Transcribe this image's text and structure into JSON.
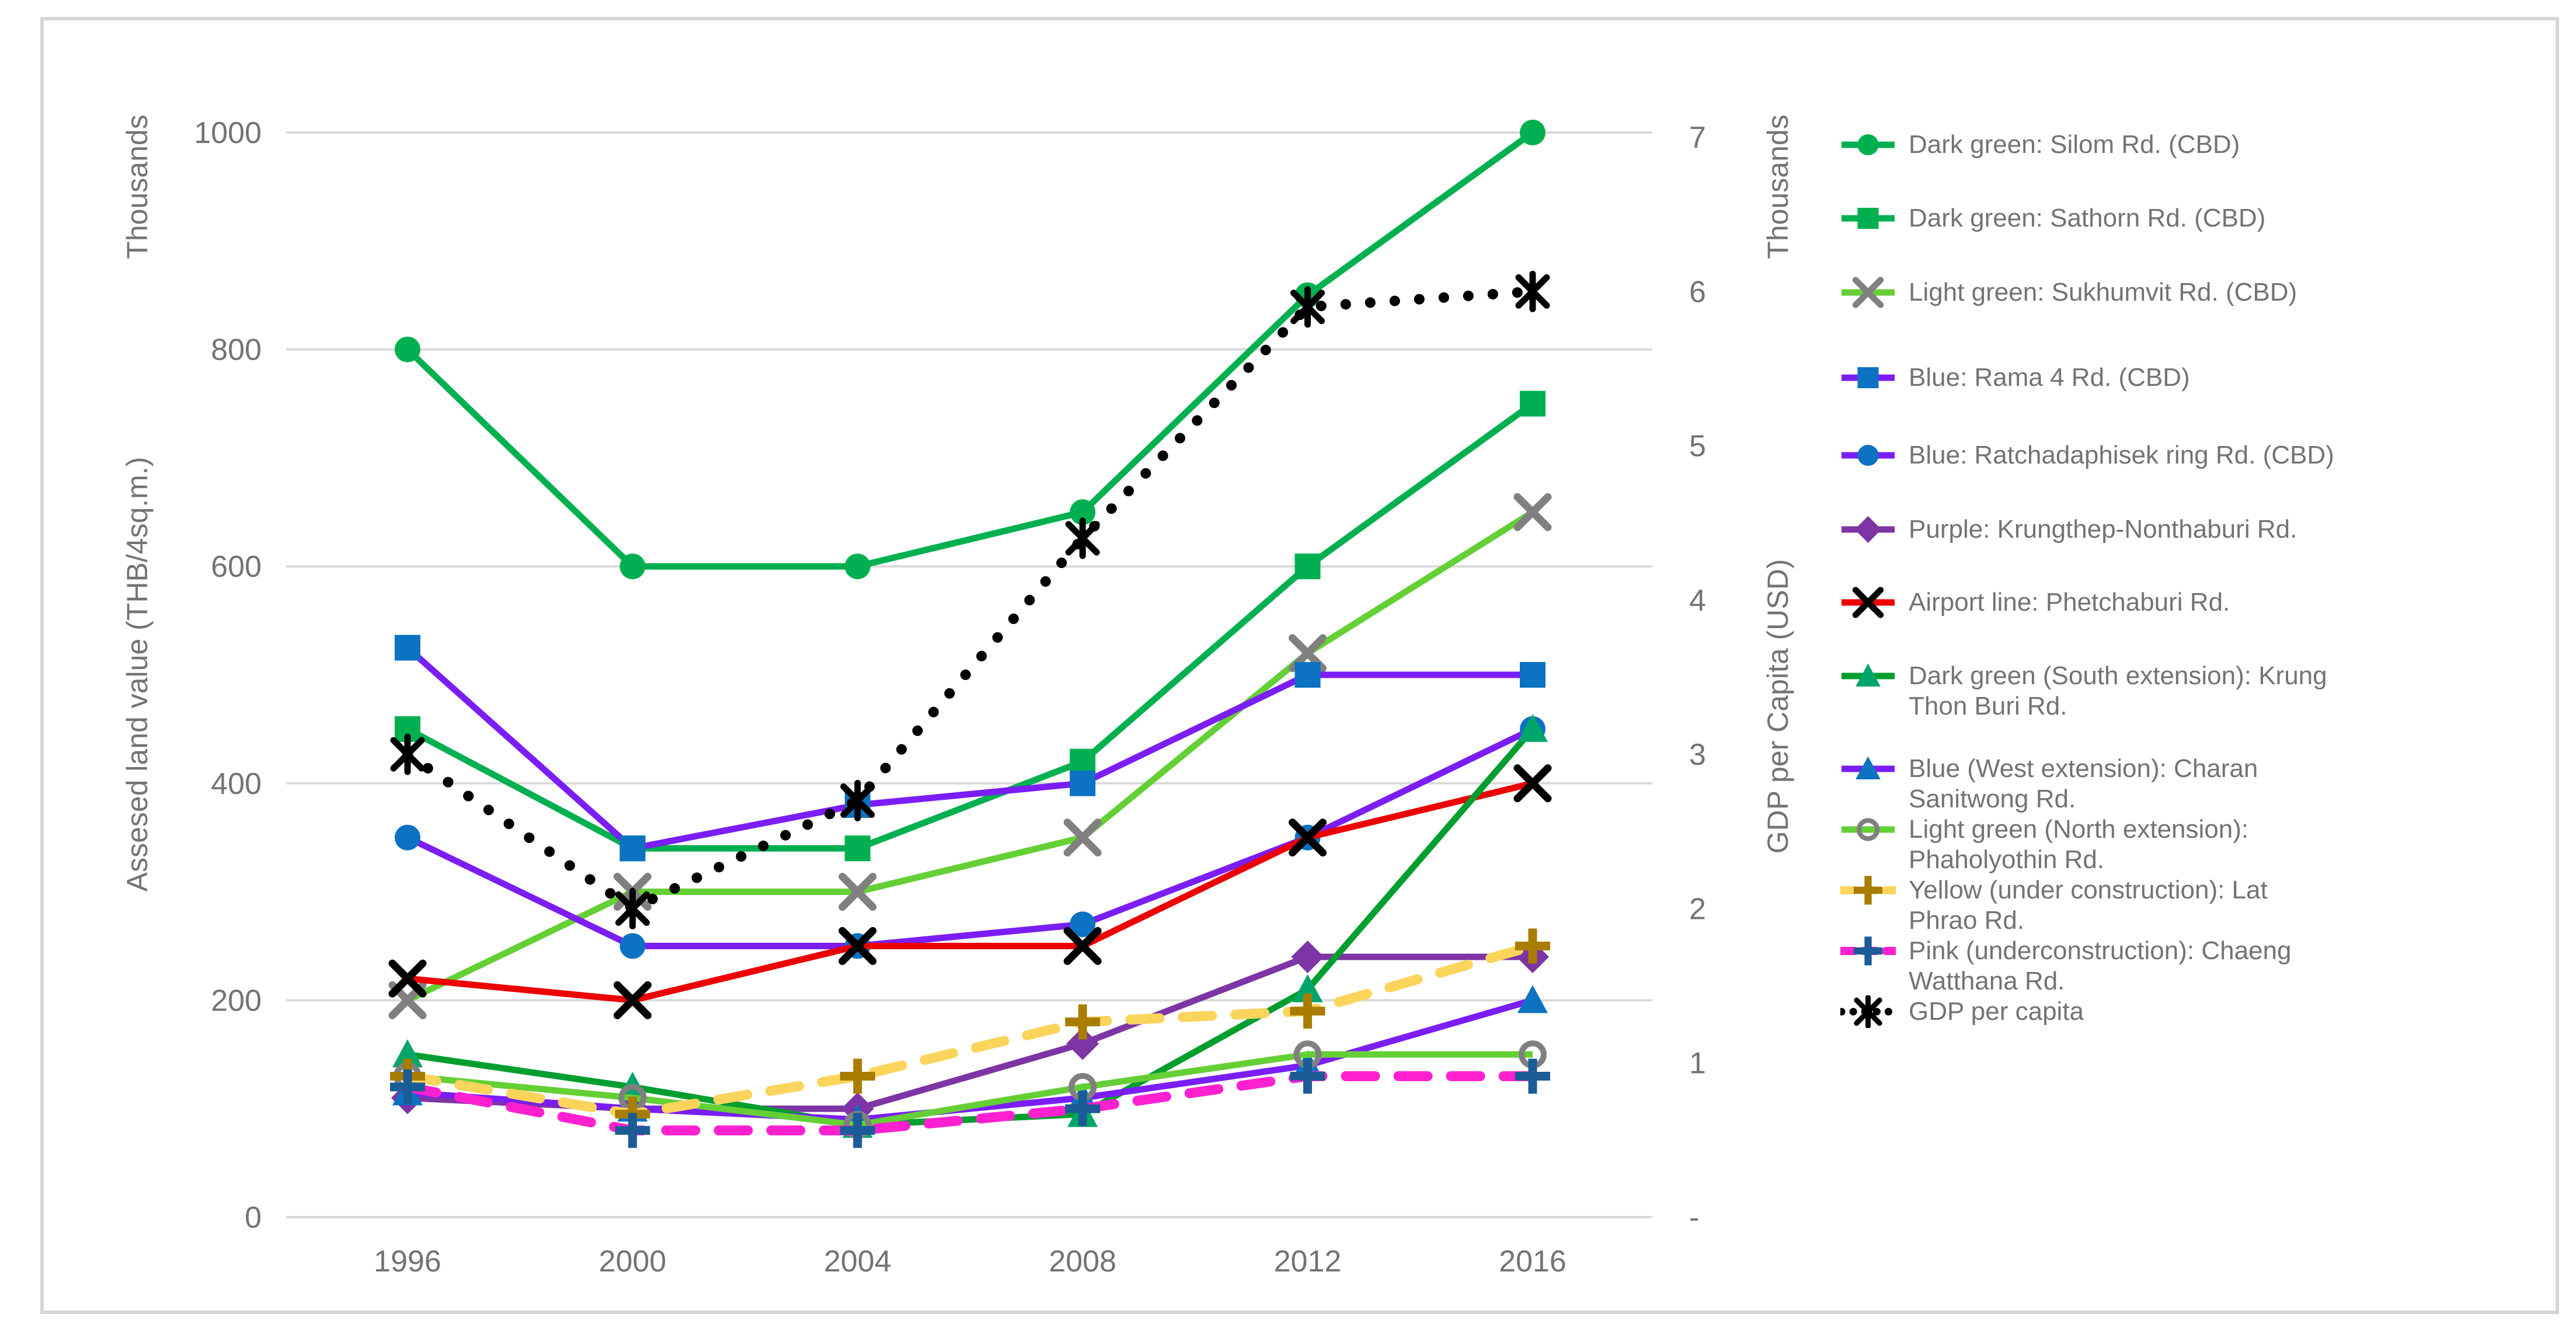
{
  "figure": {
    "background": "#FFFFFF",
    "border_color": "#D6D6D6",
    "text_color": "#737373",
    "grid_color": "#D9D9D9"
  },
  "chart_data": {
    "type": "line",
    "title": "",
    "x_categories": [
      "1996",
      "2000",
      "2004",
      "2008",
      "2012",
      "2016"
    ],
    "axes": {
      "left": {
        "units_label": "Thousands",
        "title": "Assesed land value (THB/4sq.m.)",
        "ticks": [
          "0",
          "200",
          "400",
          "600",
          "800",
          "1000"
        ],
        "tick_values": [
          0,
          200,
          400,
          600,
          800,
          1000
        ],
        "range": [
          0,
          1000
        ],
        "grid": true
      },
      "right": {
        "units_label": "Thousands",
        "title": "GDP per Capita (USD)",
        "ticks": [
          "-",
          "1",
          "2",
          "3",
          "4",
          "5",
          "6",
          "7"
        ],
        "tick_values": [
          0,
          1,
          2,
          3,
          4,
          5,
          6,
          7
        ],
        "range": [
          0,
          7
        ],
        "grid": false
      }
    },
    "legend_position": "right",
    "series": [
      {
        "id": "silom",
        "legend_lines": [
          "Dark green: Silom Rd. (CBD)"
        ],
        "axis": "left",
        "line_color": "#00B050",
        "line_style": "solid",
        "marker": "circle",
        "marker_color": "#00B050",
        "values": [
          800,
          600,
          600,
          650,
          850,
          1000
        ]
      },
      {
        "id": "sathorn",
        "legend_lines": [
          "Dark green: Sathorn Rd. (CBD)"
        ],
        "axis": "left",
        "line_color": "#00B050",
        "line_style": "solid",
        "marker": "square",
        "marker_color": "#00B050",
        "values": [
          450,
          340,
          340,
          420,
          600,
          750
        ]
      },
      {
        "id": "sukhumvit",
        "legend_lines": [
          "Light green: Sukhumvit Rd. (CBD)"
        ],
        "axis": "left",
        "line_color": "#65CF36",
        "line_style": "solid",
        "marker": "x",
        "marker_color": "#808080",
        "values": [
          200,
          300,
          300,
          350,
          520,
          650
        ]
      },
      {
        "id": "rama4",
        "legend_lines": [
          "Blue: Rama 4 Rd. (CBD)"
        ],
        "axis": "left",
        "line_color": "#7A1EF5",
        "line_style": "solid",
        "marker": "square",
        "marker_color": "#0C72C2",
        "values": [
          525,
          340,
          380,
          400,
          500,
          500
        ]
      },
      {
        "id": "ratchadaphisek",
        "legend_lines": [
          "Blue: Ratchadaphisek ring Rd. (CBD)"
        ],
        "axis": "left",
        "line_color": "#7A1EF5",
        "line_style": "solid",
        "marker": "circle",
        "marker_color": "#0C72C2",
        "values": [
          350,
          250,
          250,
          270,
          350,
          450
        ]
      },
      {
        "id": "krungthep-nonthaburi",
        "legend_lines": [
          "Purple: Krungthep-Nonthaburi Rd."
        ],
        "axis": "left",
        "line_color": "#7D35A5",
        "line_style": "solid",
        "marker": "diamond",
        "marker_color": "#7D35A5",
        "values": [
          110,
          100,
          100,
          160,
          240,
          240
        ]
      },
      {
        "id": "phetchaburi",
        "legend_lines": [
          "Airport line: Phetchaburi Rd."
        ],
        "axis": "left",
        "line_color": "#EC0000",
        "line_style": "solid",
        "marker": "x",
        "marker_color": "#000000",
        "values": [
          220,
          200,
          250,
          250,
          350,
          400
        ]
      },
      {
        "id": "krung-thon-buri",
        "legend_lines": [
          "Dark green (South extension): Krung",
          "Thon Buri Rd."
        ],
        "axis": "left",
        "line_color": "#009E2F",
        "line_style": "solid",
        "marker": "triangle",
        "marker_color": "#00A669",
        "values": [
          150,
          120,
          85,
          95,
          210,
          450
        ]
      },
      {
        "id": "charan-sanitwong",
        "legend_lines": [
          "Blue (West extension): Charan",
          "Sanitwong Rd."
        ],
        "axis": "left",
        "line_color": "#7A1EF5",
        "line_style": "solid",
        "marker": "triangle",
        "marker_color": "#0C72C2",
        "values": [
          115,
          100,
          90,
          110,
          140,
          200
        ]
      },
      {
        "id": "phaholyothin",
        "legend_lines": [
          "Light green (North extension):",
          "Phaholyothin Rd."
        ],
        "axis": "left",
        "line_color": "#65CF36",
        "line_style": "solid",
        "marker": "ring",
        "marker_color": "#808080",
        "values": [
          130,
          110,
          85,
          120,
          150,
          150
        ]
      },
      {
        "id": "lat-phrao",
        "legend_lines": [
          "Yellow (under construction): Lat",
          "Phrao Rd."
        ],
        "axis": "left",
        "line_color": "#FBD45C",
        "line_style": "dashed",
        "marker": "plus",
        "marker_color": "#A87D00",
        "values": [
          130,
          95,
          130,
          180,
          190,
          250
        ]
      },
      {
        "id": "chaeng-watthana",
        "legend_lines": [
          "Pink (underconstruction): Chaeng",
          "Watthana Rd."
        ],
        "axis": "left",
        "line_color": "#FF21D0",
        "line_style": "dashed",
        "marker": "plus",
        "marker_color": "#1B5C96",
        "values": [
          120,
          80,
          80,
          100,
          130,
          130
        ]
      },
      {
        "id": "gdp-per-capita",
        "legend_lines": [
          "GDP per capita"
        ],
        "axis": "right",
        "line_color": "#000000",
        "line_style": "dotted",
        "marker": "asterisk",
        "marker_color": "#000000",
        "values": [
          3.0,
          2.0,
          2.7,
          4.4,
          5.9,
          6.0
        ]
      }
    ]
  }
}
